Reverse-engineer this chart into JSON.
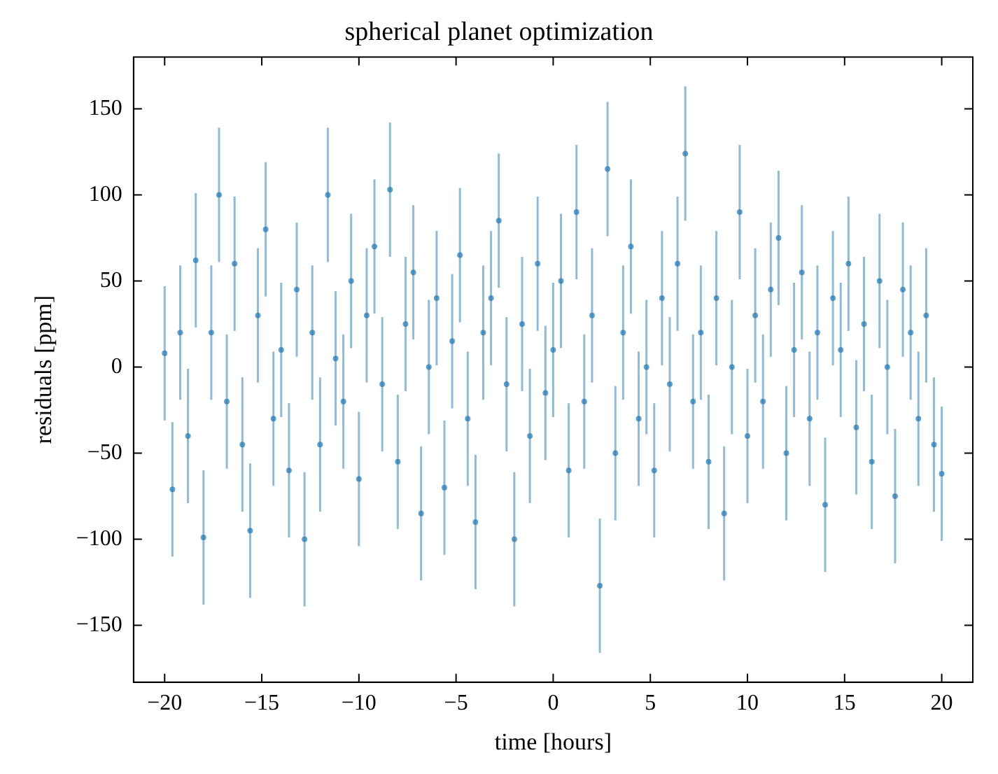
{
  "chart_data": {
    "type": "scatter",
    "title": "spherical planet optimization",
    "xlabel": "time [hours]",
    "ylabel": "residuals [ppm]",
    "x": [
      -20,
      -19.6,
      -19.2,
      -18.8,
      -18.4,
      -18,
      -17.6,
      -17.2,
      -16.8,
      -16.4,
      -16,
      -15.6,
      -15.2,
      -14.8,
      -14.4,
      -14,
      -13.6,
      -13.2,
      -12.8,
      -12.4,
      -12,
      -11.6,
      -11.2,
      -10.8,
      -10.4,
      -10,
      -9.6,
      -9.2,
      -8.8,
      -8.4,
      -8,
      -7.6,
      -7.2,
      -6.8,
      -6.4,
      -6,
      -5.6,
      -5.2,
      -4.8,
      -4.4,
      -4,
      -3.6,
      -3.2,
      -2.8,
      -2.4,
      -2,
      -1.6,
      -1.2,
      -0.8,
      -0.4,
      0,
      0.4,
      0.8,
      1.2,
      1.6,
      2,
      2.4,
      2.8,
      3.2,
      3.6,
      4,
      4.4,
      4.8,
      5.2,
      5.6,
      6,
      6.4,
      6.8,
      7.2,
      7.6,
      8,
      8.4,
      8.8,
      9.2,
      9.6,
      10,
      10.4,
      10.8,
      11.2,
      11.6,
      12,
      12.4,
      12.8,
      13.2,
      13.6,
      14,
      14.4,
      14.8,
      15.2,
      15.6,
      16,
      16.4,
      16.8,
      17.2,
      17.6,
      18,
      18.4,
      18.8,
      19.2,
      19.6,
      20
    ],
    "series": [
      {
        "color": "#1f77b4",
        "values": [
          8,
          -71,
          20,
          -40,
          62,
          -99,
          20,
          100,
          -20,
          60,
          -45,
          -95,
          30,
          80,
          -30,
          10,
          -60,
          45,
          -100,
          20,
          -45,
          100,
          5,
          -20,
          50,
          -65,
          30,
          70,
          -10,
          103,
          -55,
          25,
          55,
          -85,
          0,
          40,
          -70,
          15,
          65,
          -30,
          -90,
          20,
          40,
          85,
          -10,
          -100,
          25,
          -40,
          60,
          -15,
          10,
          50,
          -60,
          90,
          -20,
          30,
          -127,
          115,
          -50,
          20,
          70,
          -30,
          0,
          -60,
          40,
          -10,
          60,
          124,
          -20,
          20,
          -55,
          40,
          -85,
          0,
          90,
          -40,
          30,
          -20,
          45,
          75,
          -50,
          10,
          55,
          -30,
          20,
          -80,
          40,
          10,
          60,
          -35,
          25,
          -55,
          50,
          0,
          -75,
          45,
          20,
          -30,
          30,
          -45,
          -62
        ],
        "errors": [
          39,
          39,
          39,
          39,
          39,
          39,
          39,
          39,
          39,
          39,
          39,
          39,
          39,
          39,
          39,
          39,
          39,
          39,
          39,
          39,
          39,
          39,
          39,
          39,
          39,
          39,
          39,
          39,
          39,
          39,
          39,
          39,
          39,
          39,
          39,
          39,
          39,
          39,
          39,
          39,
          39,
          39,
          39,
          39,
          39,
          39,
          39,
          39,
          39,
          39,
          39,
          39,
          39,
          39,
          39,
          39,
          39,
          39,
          39,
          39,
          39,
          39,
          39,
          39,
          39,
          39,
          39,
          39,
          39,
          39,
          39,
          39,
          39,
          39,
          39,
          39,
          39,
          39,
          39,
          39,
          39,
          39,
          39,
          39,
          39,
          39,
          39,
          39,
          39,
          39,
          39,
          39,
          39,
          39,
          39,
          39,
          39,
          39,
          39,
          39,
          39
        ]
      }
    ],
    "xlim": [
      -21.6,
      21.6
    ],
    "ylim": [
      -183,
      180
    ],
    "xticks": [
      -20,
      -15,
      -10,
      -5,
      0,
      5,
      10,
      15,
      20
    ],
    "yticks": [
      -150,
      -100,
      -50,
      0,
      50,
      100,
      150
    ],
    "marker": "circle",
    "grid": false,
    "legend": false
  }
}
